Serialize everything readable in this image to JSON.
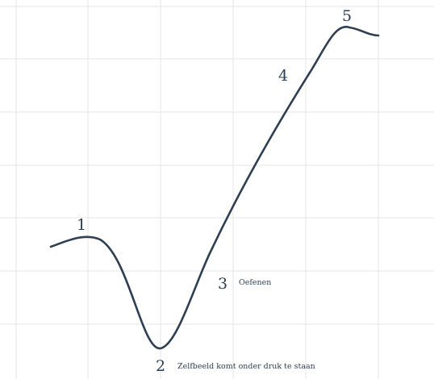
{
  "colors": {
    "line": "#2e3f52",
    "text": "#2e3f52",
    "grid": "#e6e6e6",
    "background": "#ffffff"
  },
  "points": [
    {
      "number": "1",
      "label": ""
    },
    {
      "number": "2",
      "label": "Zelfbeeld komt onder druk te staan"
    },
    {
      "number": "3",
      "label": "Oefenen"
    },
    {
      "number": "4",
      "label": ""
    },
    {
      "number": "5",
      "label": ""
    }
  ]
}
